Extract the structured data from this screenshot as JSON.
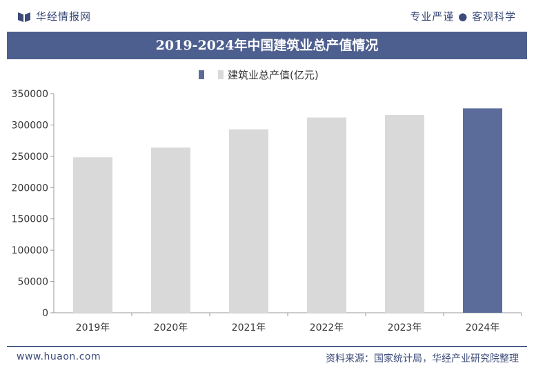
{
  "header": {
    "brand_name": "华经情报网",
    "slogan": "专业严谨 ● 客观科学",
    "title": "2019-2024年中国建筑业总产值情况"
  },
  "footer": {
    "website": "www.huaon.com",
    "source": "资料来源：国家统计局，华经产业研究院整理"
  },
  "colors": {
    "accent": "#4d5f8f",
    "bar_default": "#d9d9d9",
    "bar_highlight": "#5b6c9b"
  },
  "chart_data": {
    "type": "bar",
    "title": "2019-2024年中国建筑业总产值情况",
    "categories": [
      "2019年",
      "2020年",
      "2021年",
      "2022年",
      "2023年",
      "2024年"
    ],
    "series": [
      {
        "name": "建筑业总产值(亿元)",
        "values": [
          248446,
          263947,
          293079,
          311980,
          315912,
          326501
        ]
      }
    ],
    "highlight_index": 5,
    "ylim": [
      0,
      350000
    ],
    "yticks": [
      0,
      50000,
      100000,
      150000,
      200000,
      250000,
      300000,
      350000
    ],
    "xlabel": "",
    "ylabel": "",
    "legend_position": "top-center",
    "grid": false
  }
}
